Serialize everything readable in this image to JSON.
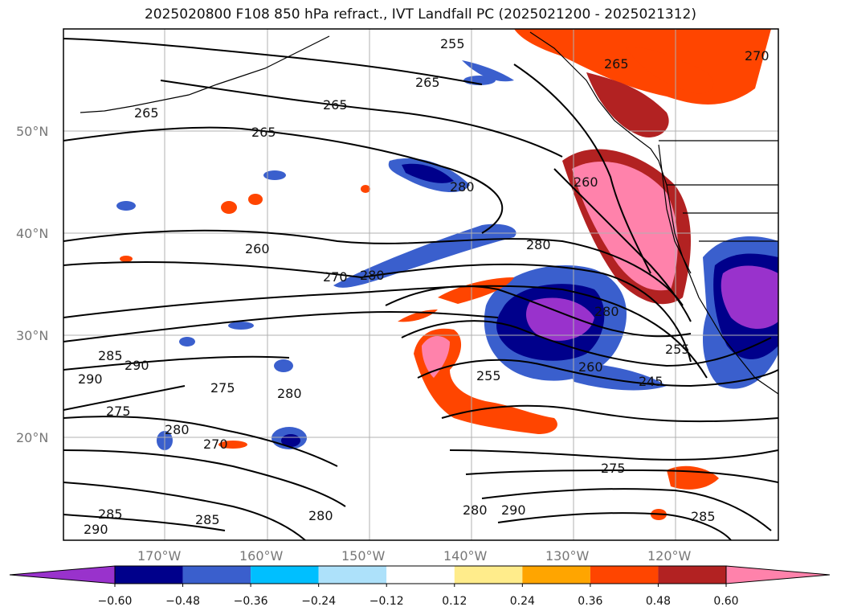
{
  "title": "2025020800 F108 850 hPa refract., IVT Landfall PC (2025021200 - 2025021312)",
  "latitude_labels": [
    "50°N",
    "40°N",
    "30°N",
    "20°N"
  ],
  "longitude_labels": [
    "170°W",
    "160°W",
    "150°W",
    "140°W",
    "130°W",
    "120°W"
  ],
  "colorbar": {
    "tick_labels": [
      "−0.60",
      "−0.48",
      "−0.36",
      "−0.24",
      "−0.12",
      "0.12",
      "0.24",
      "0.36",
      "0.48",
      "0.60"
    ],
    "colors": [
      "#9932CC",
      "#00008B",
      "#3A5FCD",
      "#00BFFF",
      "#ADE1FA",
      "#FFFFFF",
      "#FFEC8B",
      "#FFA500",
      "#FF4500",
      "#B22222",
      "#FF82AB"
    ]
  },
  "contour_labels": [
    "255",
    "265",
    "265",
    "265",
    "265",
    "260",
    "270",
    "280",
    "280",
    "280",
    "285",
    "290",
    "290",
    "275",
    "275",
    "280",
    "270",
    "280",
    "280",
    "255",
    "260",
    "245",
    "255",
    "275",
    "280",
    "290",
    "285",
    "285",
    "280",
    "290",
    "285",
    "265",
    "260",
    "270"
  ],
  "colors": {
    "contour": "#000000",
    "grid": "#b0b0b0",
    "frame": "#000000",
    "axis_text": "#777777"
  }
}
